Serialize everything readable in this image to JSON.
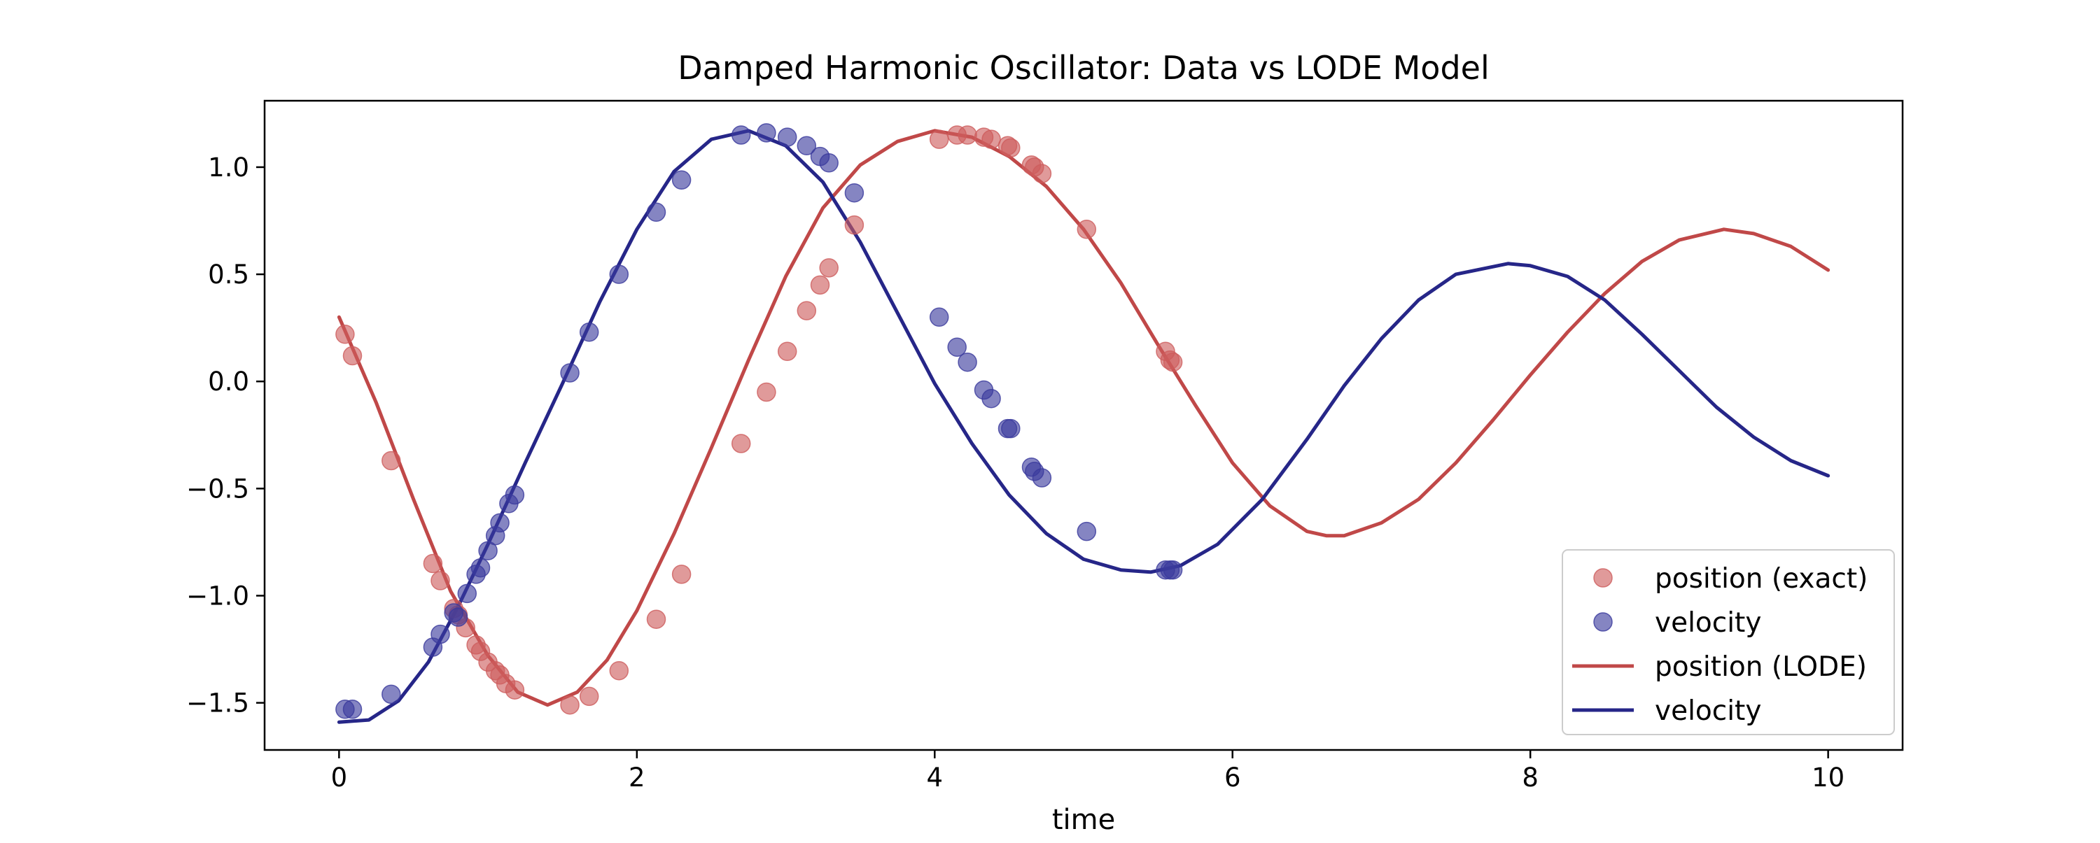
{
  "chart_data": {
    "type": "line",
    "title": "Damped Harmonic Oscillator: Data vs LODE Model",
    "xlabel": "time",
    "ylabel": "",
    "xlim": [
      -0.5,
      10.5
    ],
    "ylim": [
      -1.72,
      1.31
    ],
    "x_ticks": [
      0,
      2,
      4,
      6,
      8,
      10
    ],
    "x_tick_labels": [
      "0",
      "2",
      "4",
      "6",
      "8",
      "10"
    ],
    "y_ticks": [
      -1.5,
      -1.0,
      -0.5,
      0.0,
      0.5,
      1.0
    ],
    "y_tick_labels": [
      "−1.5",
      "−1.0",
      "−0.5",
      "0.0",
      "0.5",
      "1.0"
    ],
    "grid": false,
    "legend_position": "lower-right",
    "scatter_series": [
      {
        "name": "position (exact)",
        "color": "#cd5c5c",
        "points": [
          [
            0.04,
            0.22
          ],
          [
            0.09,
            0.12
          ],
          [
            0.35,
            -0.37
          ],
          [
            0.63,
            -0.85
          ],
          [
            0.68,
            -0.93
          ],
          [
            0.77,
            -1.06
          ],
          [
            0.8,
            -1.09
          ],
          [
            0.85,
            -1.15
          ],
          [
            0.92,
            -1.23
          ],
          [
            0.95,
            -1.26
          ],
          [
            1.0,
            -1.31
          ],
          [
            1.05,
            -1.35
          ],
          [
            1.08,
            -1.37
          ],
          [
            1.12,
            -1.41
          ],
          [
            1.18,
            -1.44
          ],
          [
            1.55,
            -1.51
          ],
          [
            1.68,
            -1.47
          ],
          [
            1.88,
            -1.35
          ],
          [
            2.13,
            -1.11
          ],
          [
            2.3,
            -0.9
          ],
          [
            2.7,
            -0.29
          ],
          [
            2.87,
            -0.05
          ],
          [
            3.01,
            0.14
          ],
          [
            3.14,
            0.33
          ],
          [
            3.23,
            0.45
          ],
          [
            3.29,
            0.53
          ],
          [
            3.46,
            0.73
          ],
          [
            4.03,
            1.13
          ],
          [
            4.15,
            1.15
          ],
          [
            4.22,
            1.15
          ],
          [
            4.33,
            1.14
          ],
          [
            4.38,
            1.13
          ],
          [
            4.49,
            1.1
          ],
          [
            4.51,
            1.09
          ],
          [
            4.65,
            1.01
          ],
          [
            4.67,
            1.0
          ],
          [
            4.72,
            0.97
          ],
          [
            5.02,
            0.71
          ],
          [
            5.55,
            0.14
          ],
          [
            5.58,
            0.1
          ],
          [
            5.6,
            0.09
          ]
        ]
      },
      {
        "name": "velocity",
        "color": "#3a3a9c",
        "points": [
          [
            0.04,
            -1.53
          ],
          [
            0.09,
            -1.53
          ],
          [
            0.35,
            -1.46
          ],
          [
            0.63,
            -1.24
          ],
          [
            0.68,
            -1.18
          ],
          [
            0.77,
            -1.08
          ],
          [
            0.8,
            -1.1
          ],
          [
            0.86,
            -0.99
          ],
          [
            0.92,
            -0.9
          ],
          [
            0.95,
            -0.87
          ],
          [
            1.0,
            -0.79
          ],
          [
            1.05,
            -0.72
          ],
          [
            1.08,
            -0.66
          ],
          [
            1.14,
            -0.57
          ],
          [
            1.18,
            -0.53
          ],
          [
            1.55,
            0.04
          ],
          [
            1.68,
            0.23
          ],
          [
            1.88,
            0.5
          ],
          [
            2.13,
            0.79
          ],
          [
            2.3,
            0.94
          ],
          [
            2.7,
            1.15
          ],
          [
            2.87,
            1.16
          ],
          [
            3.01,
            1.14
          ],
          [
            3.14,
            1.1
          ],
          [
            3.23,
            1.05
          ],
          [
            3.29,
            1.02
          ],
          [
            3.46,
            0.88
          ],
          [
            4.03,
            0.3
          ],
          [
            4.15,
            0.16
          ],
          [
            4.22,
            0.09
          ],
          [
            4.33,
            -0.04
          ],
          [
            4.38,
            -0.08
          ],
          [
            4.49,
            -0.22
          ],
          [
            4.51,
            -0.22
          ],
          [
            4.65,
            -0.4
          ],
          [
            4.67,
            -0.42
          ],
          [
            4.72,
            -0.45
          ],
          [
            5.02,
            -0.7
          ],
          [
            5.55,
            -0.88
          ],
          [
            5.58,
            -0.88
          ],
          [
            5.6,
            -0.88
          ]
        ]
      }
    ],
    "line_series": [
      {
        "name": "position (LODE)",
        "color": "#c04848",
        "points": [
          [
            0.0,
            0.3
          ],
          [
            0.25,
            -0.1
          ],
          [
            0.5,
            -0.55
          ],
          [
            0.75,
            -0.98
          ],
          [
            1.0,
            -1.28
          ],
          [
            1.2,
            -1.45
          ],
          [
            1.4,
            -1.51
          ],
          [
            1.6,
            -1.45
          ],
          [
            1.8,
            -1.3
          ],
          [
            2.0,
            -1.07
          ],
          [
            2.25,
            -0.71
          ],
          [
            2.5,
            -0.31
          ],
          [
            2.75,
            0.1
          ],
          [
            3.0,
            0.49
          ],
          [
            3.25,
            0.81
          ],
          [
            3.5,
            1.01
          ],
          [
            3.75,
            1.12
          ],
          [
            4.0,
            1.17
          ],
          [
            4.25,
            1.14
          ],
          [
            4.5,
            1.05
          ],
          [
            4.75,
            0.91
          ],
          [
            5.0,
            0.71
          ],
          [
            5.25,
            0.46
          ],
          [
            5.5,
            0.17
          ],
          [
            5.75,
            -0.11
          ],
          [
            6.0,
            -0.38
          ],
          [
            6.25,
            -0.58
          ],
          [
            6.5,
            -0.7
          ],
          [
            6.63,
            -0.72
          ],
          [
            6.75,
            -0.72
          ],
          [
            7.0,
            -0.66
          ],
          [
            7.25,
            -0.55
          ],
          [
            7.5,
            -0.38
          ],
          [
            7.75,
            -0.18
          ],
          [
            8.0,
            0.03
          ],
          [
            8.25,
            0.23
          ],
          [
            8.5,
            0.41
          ],
          [
            8.75,
            0.56
          ],
          [
            9.0,
            0.66
          ],
          [
            9.3,
            0.71
          ],
          [
            9.5,
            0.69
          ],
          [
            9.75,
            0.63
          ],
          [
            10.0,
            0.52
          ]
        ]
      },
      {
        "name": "velocity",
        "color": "#262688",
        "points": [
          [
            0.0,
            -1.59
          ],
          [
            0.2,
            -1.58
          ],
          [
            0.4,
            -1.49
          ],
          [
            0.6,
            -1.31
          ],
          [
            0.8,
            -1.05
          ],
          [
            1.0,
            -0.76
          ],
          [
            1.25,
            -0.38
          ],
          [
            1.5,
            -0.01
          ],
          [
            1.75,
            0.37
          ],
          [
            2.0,
            0.71
          ],
          [
            2.25,
            0.98
          ],
          [
            2.5,
            1.13
          ],
          [
            2.75,
            1.17
          ],
          [
            3.0,
            1.1
          ],
          [
            3.25,
            0.93
          ],
          [
            3.5,
            0.65
          ],
          [
            3.75,
            0.32
          ],
          [
            4.0,
            -0.01
          ],
          [
            4.25,
            -0.29
          ],
          [
            4.5,
            -0.53
          ],
          [
            4.75,
            -0.71
          ],
          [
            5.0,
            -0.83
          ],
          [
            5.25,
            -0.88
          ],
          [
            5.45,
            -0.89
          ],
          [
            5.65,
            -0.86
          ],
          [
            5.9,
            -0.76
          ],
          [
            6.2,
            -0.55
          ],
          [
            6.5,
            -0.27
          ],
          [
            6.75,
            -0.02
          ],
          [
            7.0,
            0.2
          ],
          [
            7.25,
            0.38
          ],
          [
            7.5,
            0.5
          ],
          [
            7.85,
            0.55
          ],
          [
            8.0,
            0.54
          ],
          [
            8.25,
            0.49
          ],
          [
            8.5,
            0.38
          ],
          [
            8.75,
            0.22
          ],
          [
            9.0,
            0.05
          ],
          [
            9.25,
            -0.12
          ],
          [
            9.5,
            -0.26
          ],
          [
            9.75,
            -0.37
          ],
          [
            10.0,
            -0.44
          ]
        ]
      }
    ]
  }
}
